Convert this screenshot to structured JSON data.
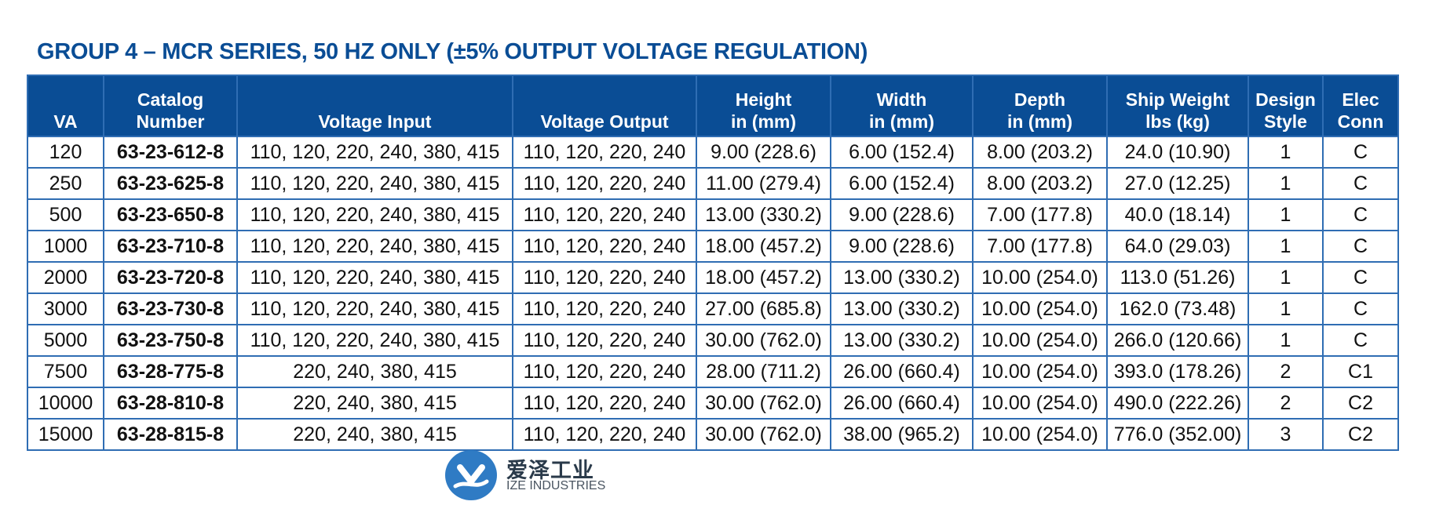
{
  "title": "GROUP 4 – MCR SERIES, 50 HZ ONLY (±5% OUTPUT VOLTAGE REGULATION)",
  "columns": [
    {
      "lines": [
        "VA"
      ]
    },
    {
      "lines": [
        "Catalog",
        "Number"
      ]
    },
    {
      "lines": [
        "Voltage Input"
      ]
    },
    {
      "lines": [
        "Voltage Output"
      ]
    },
    {
      "lines": [
        "Height",
        "in (mm)"
      ]
    },
    {
      "lines": [
        "Width",
        "in (mm)"
      ]
    },
    {
      "lines": [
        "Depth",
        "in (mm)"
      ]
    },
    {
      "lines": [
        "Ship Weight",
        "lbs (kg)"
      ]
    },
    {
      "lines": [
        "Design",
        "Style"
      ]
    },
    {
      "lines": [
        "Elec",
        "Conn"
      ]
    }
  ],
  "rows": [
    [
      "120",
      "63-23-612-8",
      "110, 120, 220, 240, 380, 415",
      "110, 120, 220, 240",
      "9.00 (228.6)",
      "6.00 (152.4)",
      "8.00 (203.2)",
      "24.0 (10.90)",
      "1",
      "C"
    ],
    [
      "250",
      "63-23-625-8",
      "110, 120, 220, 240, 380, 415",
      "110, 120, 220, 240",
      "11.00 (279.4)",
      "6.00 (152.4)",
      "8.00 (203.2)",
      "27.0 (12.25)",
      "1",
      "C"
    ],
    [
      "500",
      "63-23-650-8",
      "110, 120, 220, 240, 380, 415",
      "110, 120, 220, 240",
      "13.00 (330.2)",
      "9.00 (228.6)",
      "7.00 (177.8)",
      "40.0 (18.14)",
      "1",
      "C"
    ],
    [
      "1000",
      "63-23-710-8",
      "110, 120, 220, 240, 380, 415",
      "110, 120, 220, 240",
      "18.00 (457.2)",
      "9.00 (228.6)",
      "7.00 (177.8)",
      "64.0 (29.03)",
      "1",
      "C"
    ],
    [
      "2000",
      "63-23-720-8",
      "110, 120, 220, 240, 380, 415",
      "110, 120, 220, 240",
      "18.00 (457.2)",
      "13.00 (330.2)",
      "10.00 (254.0)",
      "113.0 (51.26)",
      "1",
      "C"
    ],
    [
      "3000",
      "63-23-730-8",
      "110, 120, 220, 240, 380, 415",
      "110, 120, 220, 240",
      "27.00 (685.8)",
      "13.00 (330.2)",
      "10.00 (254.0)",
      "162.0 (73.48)",
      "1",
      "C"
    ],
    [
      "5000",
      "63-23-750-8",
      "110, 120, 220, 240, 380, 415",
      "110, 120, 220, 240",
      "30.00 (762.0)",
      "13.00 (330.2)",
      "10.00 (254.0)",
      "266.0 (120.66)",
      "1",
      "C"
    ],
    [
      "7500",
      "63-28-775-8",
      "220, 240, 380, 415",
      "110, 120, 220, 240",
      "28.00 (711.2)",
      "26.00 (660.4)",
      "10.00 (254.0)",
      "393.0 (178.26)",
      "2",
      "C1"
    ],
    [
      "10000",
      "63-28-810-8",
      "220, 240, 380, 415",
      "110, 120, 220, 240",
      "30.00 (762.0)",
      "26.00 (660.4)",
      "10.00 (254.0)",
      "490.0 (222.26)",
      "2",
      "C2"
    ],
    [
      "15000",
      "63-28-815-8",
      "220, 240, 380, 415",
      "110, 120, 220, 240",
      "30.00 (762.0)",
      "38.00 (965.2)",
      "10.00 (254.0)",
      "776.0 (352.00)",
      "3",
      "C2"
    ]
  ],
  "watermark": {
    "name_cn": "爱泽工业",
    "name_en": "IZE INDUSTRIES"
  },
  "colors": {
    "title": "#0a4d95",
    "header_bg": "#0a4d95",
    "grid": "#2f6db3",
    "logo": "#2f7bc4"
  }
}
